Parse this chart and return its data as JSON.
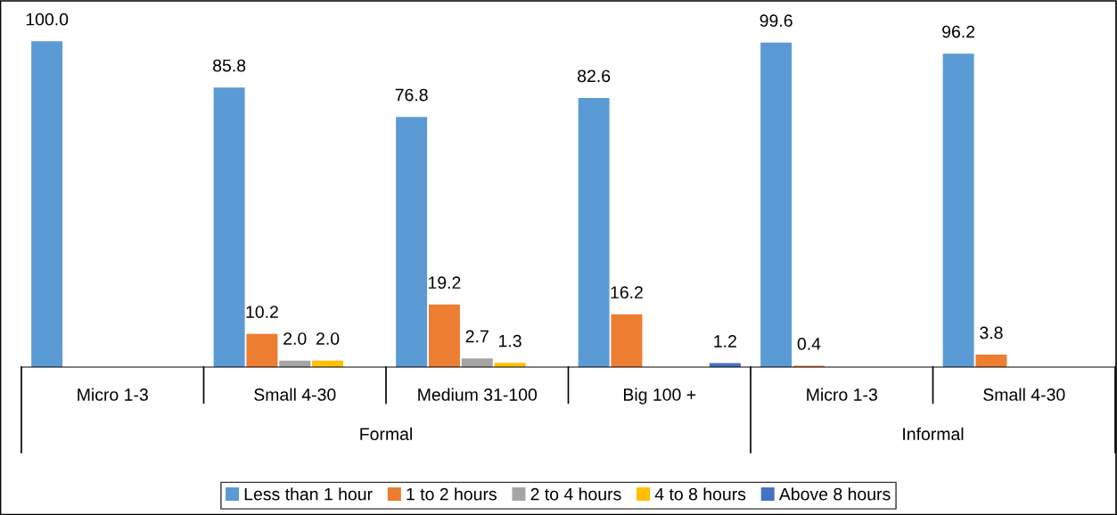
{
  "chart_data": {
    "type": "bar",
    "categories": [
      "Micro 1-3",
      "Small 4-30",
      "Medium 31-100",
      "Big 100 +",
      "Micro 1-3",
      "Small 4-30"
    ],
    "annotations": [
      "Formal",
      "Informal"
    ],
    "series": [
      {
        "name": "Less than 1 hour",
        "color": "#5b9bd5",
        "values": [
          100,
          85.8,
          76.8,
          82.6,
          99.6,
          96.2
        ],
        "value_labels": [
          "100.0",
          "85.8",
          "76.8",
          "82.6",
          "99.6",
          "96.2"
        ]
      },
      {
        "name": "1 to 2 hours",
        "color": "#ed7d31",
        "values": [
          null,
          10.2,
          19.2,
          16.2,
          0.4,
          3.8
        ],
        "value_labels": [
          null,
          "10.2",
          "19.2",
          "16.2",
          "0.4",
          "3.8"
        ]
      },
      {
        "name": "2 to 4 hours",
        "color": "#a5a5a5",
        "values": [
          null,
          2,
          2.7,
          null,
          null,
          null
        ],
        "value_labels": [
          null,
          "2.0",
          "2.7",
          null,
          null,
          null
        ]
      },
      {
        "name": "4 to 8 hours",
        "color": "#ffc000",
        "values": [
          null,
          2,
          1.3,
          null,
          null,
          null
        ],
        "value_labels": [
          null,
          "2.0",
          "1.3",
          null,
          null,
          null
        ]
      },
      {
        "name": "Above 8 hours",
        "color": "#4472c4",
        "values": [
          null,
          null,
          null,
          1.2,
          null,
          null
        ],
        "value_labels": [
          null,
          null,
          null,
          "1.2",
          null,
          null
        ]
      }
    ],
    "tick_labels": "x",
    "legend": "bottom"
  }
}
